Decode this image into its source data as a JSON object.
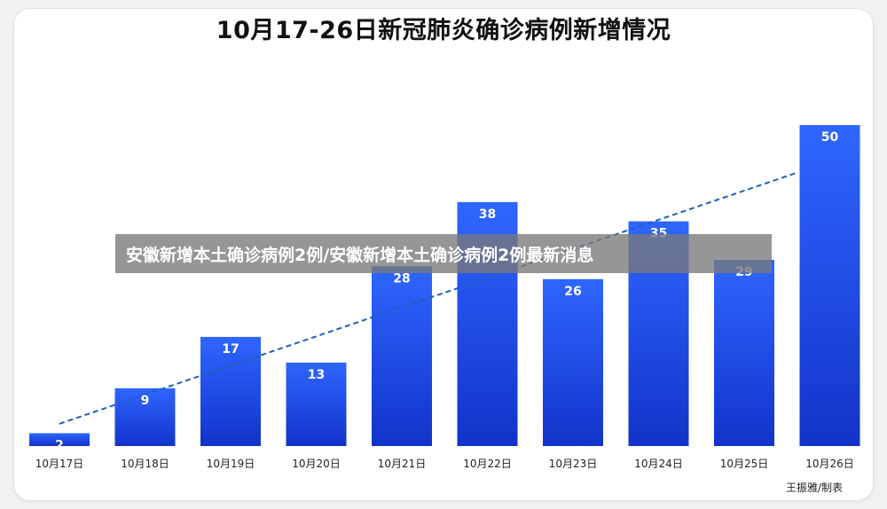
{
  "overlay": {
    "headline": "安徽新增本土确诊病例2例/安徽新增本土确诊病例2例最新消息"
  },
  "credit": "王振雅/制表",
  "colors": {
    "bar_top": "#2f66ff",
    "bar_bottom": "#1233c9",
    "trend": "#1f5fb8",
    "overlay": "#787878"
  },
  "chart_data": {
    "type": "bar",
    "title": "10月17-26日新冠肺炎确诊病例新增情况",
    "xlabel": "",
    "ylabel": "",
    "categories": [
      "10月17日",
      "10月18日",
      "10月19日",
      "10月20日",
      "10月21日",
      "10月22日",
      "10月23日",
      "10月24日",
      "10月25日",
      "10月26日"
    ],
    "values": [
      2,
      9,
      17,
      13,
      28,
      38,
      26,
      35,
      29,
      50
    ],
    "ylim": [
      0,
      50
    ],
    "grid": false,
    "trendline": {
      "style": "dashed",
      "start": 2.5,
      "end": 42.5
    }
  }
}
